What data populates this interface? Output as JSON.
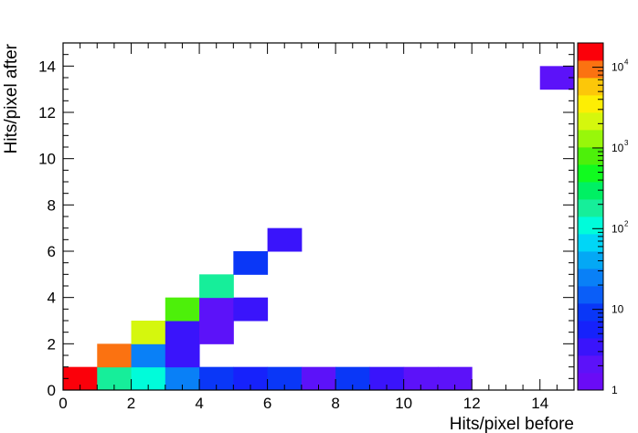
{
  "chart_data": {
    "type": "heatmap",
    "xlabel": "Hits/pixel before",
    "ylabel": "Hits/pixel after",
    "xlim": [
      0,
      15
    ],
    "ylim": [
      0,
      15
    ],
    "bin_width": 1,
    "x_ticks": [
      0,
      2,
      4,
      6,
      8,
      10,
      12,
      14
    ],
    "y_ticks": [
      0,
      2,
      4,
      6,
      8,
      10,
      12,
      14
    ],
    "z_scale": "log",
    "zlim": [
      1,
      20000
    ],
    "colorbar_labels": [
      {
        "base": "1",
        "exp": "",
        "value": 1
      },
      {
        "base": "10",
        "exp": "",
        "value": 10
      },
      {
        "base": "10",
        "exp": "2",
        "value": 100
      },
      {
        "base": "10",
        "exp": "3",
        "value": 1000
      },
      {
        "base": "10",
        "exp": "4",
        "value": 10000
      }
    ],
    "bins": [
      {
        "x": 0,
        "y": 0,
        "value": 20000
      },
      {
        "x": 1,
        "y": 0,
        "value": 180
      },
      {
        "x": 2,
        "y": 0,
        "value": 100
      },
      {
        "x": 3,
        "y": 0,
        "value": 25
      },
      {
        "x": 4,
        "y": 0,
        "value": 9
      },
      {
        "x": 5,
        "y": 0,
        "value": 5
      },
      {
        "x": 6,
        "y": 0,
        "value": 9
      },
      {
        "x": 7,
        "y": 0,
        "value": 2
      },
      {
        "x": 8,
        "y": 0,
        "value": 9
      },
      {
        "x": 9,
        "y": 0,
        "value": 4
      },
      {
        "x": 10,
        "y": 0,
        "value": 2
      },
      {
        "x": 11,
        "y": 0,
        "value": 2
      },
      {
        "x": 1,
        "y": 1,
        "value": 8000
      },
      {
        "x": 2,
        "y": 1,
        "value": 25
      },
      {
        "x": 3,
        "y": 1,
        "value": 4
      },
      {
        "x": 2,
        "y": 2,
        "value": 2500
      },
      {
        "x": 3,
        "y": 2,
        "value": 4
      },
      {
        "x": 4,
        "y": 2,
        "value": 2
      },
      {
        "x": 3,
        "y": 3,
        "value": 700
      },
      {
        "x": 4,
        "y": 3,
        "value": 2
      },
      {
        "x": 5,
        "y": 3,
        "value": 3
      },
      {
        "x": 4,
        "y": 4,
        "value": 180
      },
      {
        "x": 5,
        "y": 5,
        "value": 9
      },
      {
        "x": 6,
        "y": 6,
        "value": 3
      },
      {
        "x": 14,
        "y": 13,
        "value": 2
      }
    ]
  }
}
